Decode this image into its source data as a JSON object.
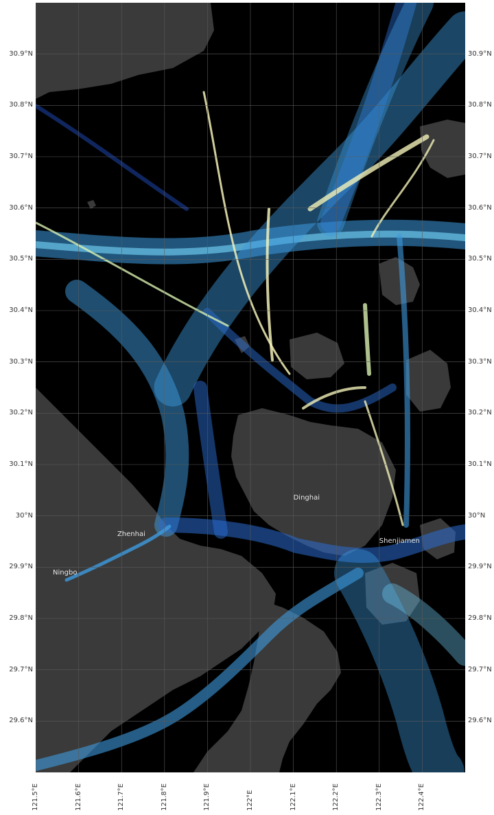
{
  "map": {
    "background_color": "#000000",
    "land_color": "#3a3a3a",
    "grid_color": "#5a5a5a",
    "track_colors": [
      "#1a3f9e",
      "#2a6cd0",
      "#3d9be0",
      "#6cc6ec",
      "#d8f0b0",
      "#f3f1b8"
    ],
    "extent": {
      "lon_min": 121.5,
      "lon_max": 122.5,
      "lat_min": 29.5,
      "lat_max": 31.0
    }
  },
  "lat_ticks": [
    {
      "value": 30.9,
      "label": "30.9°N"
    },
    {
      "value": 30.8,
      "label": "30.8°N"
    },
    {
      "value": 30.7,
      "label": "30.7°N"
    },
    {
      "value": 30.6,
      "label": "30.6°N"
    },
    {
      "value": 30.5,
      "label": "30.5°N"
    },
    {
      "value": 30.4,
      "label": "30.4°N"
    },
    {
      "value": 30.3,
      "label": "30.3°N"
    },
    {
      "value": 30.2,
      "label": "30.2°N"
    },
    {
      "value": 30.1,
      "label": "30.1°N"
    },
    {
      "value": 30.0,
      "label": "30°N"
    },
    {
      "value": 29.9,
      "label": "29.9°N"
    },
    {
      "value": 29.8,
      "label": "29.8°N"
    },
    {
      "value": 29.7,
      "label": "29.7°N"
    },
    {
      "value": 29.6,
      "label": "29.6°N"
    }
  ],
  "lon_ticks": [
    {
      "value": 121.5,
      "label": "121.5°E"
    },
    {
      "value": 121.6,
      "label": "121.6°E"
    },
    {
      "value": 121.7,
      "label": "121.7°E"
    },
    {
      "value": 121.8,
      "label": "121.8°E"
    },
    {
      "value": 121.9,
      "label": "121.9°E"
    },
    {
      "value": 122.0,
      "label": "122°E"
    },
    {
      "value": 122.1,
      "label": "122.1°E"
    },
    {
      "value": 122.2,
      "label": "122.2°E"
    },
    {
      "value": 122.3,
      "label": "122.3°E"
    },
    {
      "value": 122.4,
      "label": "122.4°E"
    }
  ],
  "places": [
    {
      "name": "Dinghai",
      "lon": 122.1,
      "lat": 30.035
    },
    {
      "name": "Zhenhai",
      "lon": 121.69,
      "lat": 29.963
    },
    {
      "name": "Ningbo",
      "lon": 121.54,
      "lat": 29.888
    },
    {
      "name": "Shenjiamen",
      "lon": 122.3,
      "lat": 29.95
    }
  ]
}
